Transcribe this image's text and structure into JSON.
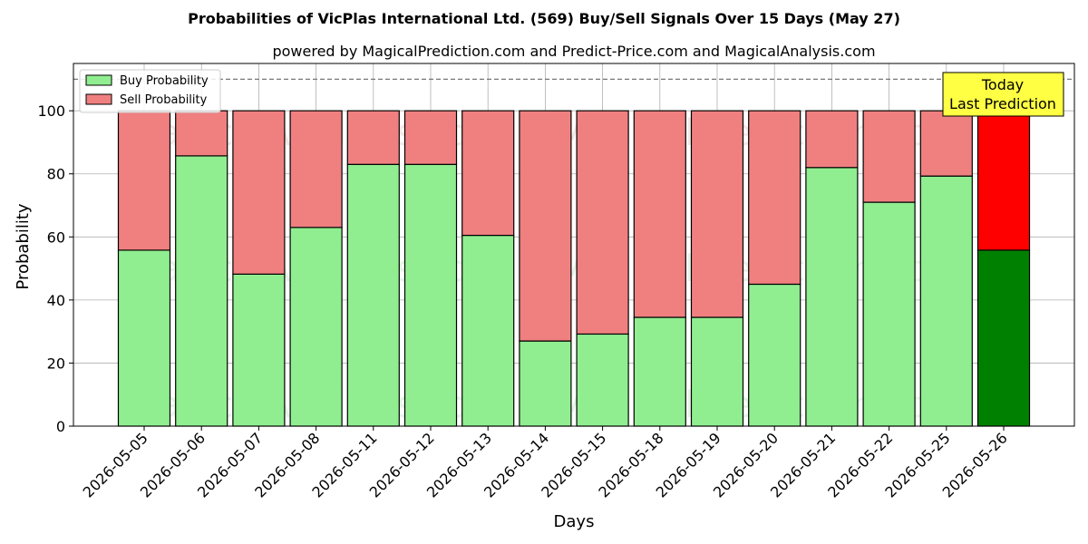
{
  "chart_data": {
    "type": "bar",
    "stacked": true,
    "title": "Probabilities of VicPlas International Ltd. (569) Buy/Sell Signals Over 15 Days (May 27)",
    "subtitle": "powered by MagicalPrediction.com and Predict-Price.com and MagicalAnalysis.com",
    "xlabel": "Days",
    "ylabel": "Probability",
    "ylim": [
      0,
      115
    ],
    "yticks": [
      0,
      20,
      40,
      60,
      80,
      100
    ],
    "grid": true,
    "reference_line": 110,
    "legend_position": "top-left",
    "categories": [
      "2026-05-05",
      "2026-05-06",
      "2026-05-07",
      "2026-05-08",
      "2026-05-11",
      "2026-05-12",
      "2026-05-13",
      "2026-05-14",
      "2026-05-15",
      "2026-05-18",
      "2026-05-19",
      "2026-05-20",
      "2026-05-21",
      "2026-05-22",
      "2026-05-25",
      "2026-05-26"
    ],
    "series": [
      {
        "name": "Buy Probability",
        "color": "#90ee90",
        "highlight_color": "#008000",
        "values": [
          55.8,
          85.7,
          48.2,
          63.0,
          83.0,
          83.0,
          60.5,
          27.0,
          29.2,
          34.5,
          34.5,
          45.0,
          82.0,
          71.0,
          79.3,
          55.8
        ]
      },
      {
        "name": "Sell Probability",
        "color": "#f08080",
        "highlight_color": "#ff0000",
        "values": [
          44.2,
          14.3,
          51.8,
          37.0,
          17.0,
          17.0,
          39.5,
          73.0,
          70.8,
          65.5,
          65.5,
          55.0,
          18.0,
          29.0,
          20.7,
          44.2
        ]
      }
    ],
    "highlight_index": 15,
    "annotation": {
      "line1": "Today",
      "line2": "Last Prediction",
      "background": "#ffff44"
    },
    "watermarks": [
      "MagicalAnalysis.com",
      "MagicalPrediction.com"
    ]
  }
}
